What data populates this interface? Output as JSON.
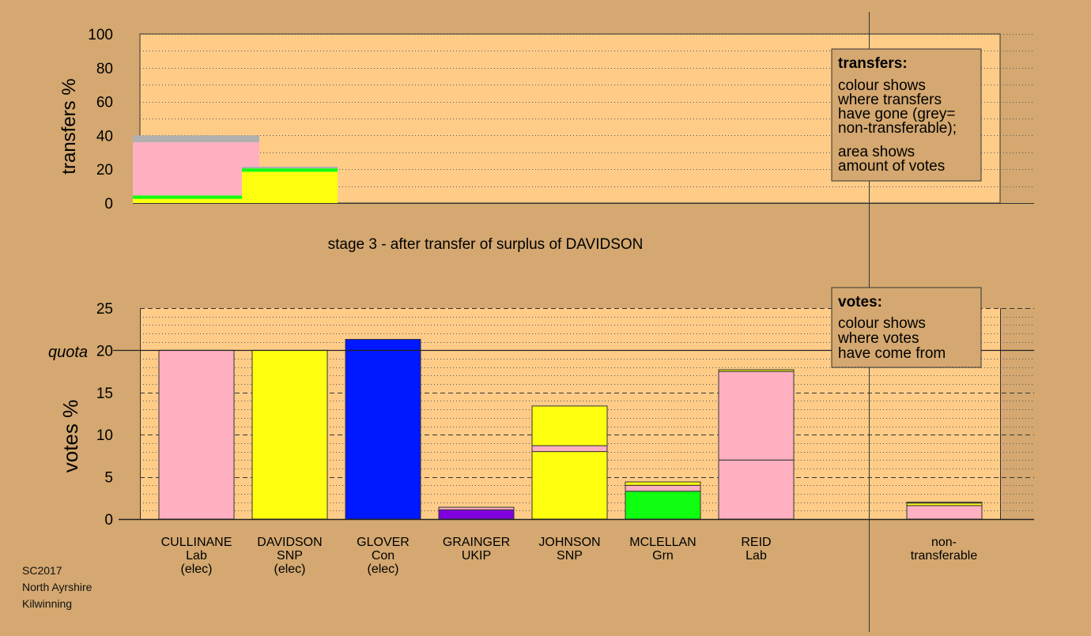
{
  "colors": {
    "background": "#d4a870",
    "plot_area": "#ffcc88",
    "Lab": "#ffb0c0",
    "SNP": "#ffff10",
    "Con": "#0018ff",
    "UKIP": "#8000e0",
    "Grn": "#10ff10",
    "nontransferable": "#b0b0b0"
  },
  "transfers_chart": {
    "type": "stacked-bar",
    "ylabel": "transfers %",
    "ylim": [
      0,
      100
    ],
    "yticks": [
      0,
      20,
      40,
      60,
      80,
      100
    ],
    "bars": [
      {
        "name": "from-cullinane",
        "segments": [
          {
            "party": "SNP",
            "from": 0,
            "to": 2.5
          },
          {
            "party": "Grn",
            "from": 2.5,
            "to": 4.5
          },
          {
            "party": "Lab",
            "from": 4.5,
            "to": 36
          },
          {
            "party": "nontransferable",
            "from": 36,
            "to": 40
          }
        ]
      },
      {
        "name": "from-davidson",
        "segments": [
          {
            "party": "SNP",
            "from": 0,
            "to": 18.5
          },
          {
            "party": "Grn",
            "from": 18.5,
            "to": 20.5
          },
          {
            "party": "nontransferable",
            "from": 20.5,
            "to": 21.5
          }
        ]
      }
    ]
  },
  "stage_title": "stage 3 - after transfer of surplus of DAVIDSON",
  "transfers_legend": {
    "title": "transfers:",
    "lines1": [
      "colour shows",
      "where transfers",
      "have gone (grey=",
      "non-transferable);"
    ],
    "lines2": [
      "area shows",
      "amount of votes"
    ]
  },
  "votes_chart": {
    "type": "stacked-bar",
    "ylabel": "votes %",
    "ylim": [
      0,
      25
    ],
    "yticks": [
      0,
      5,
      10,
      15,
      20,
      25
    ],
    "quota": 20,
    "quota_label": "quota",
    "candidates": [
      {
        "name": "CULLINANE",
        "party": "Lab",
        "status": "(elec)",
        "segments": [
          {
            "party": "Lab",
            "value": 20
          }
        ]
      },
      {
        "name": "DAVIDSON",
        "party": "SNP",
        "status": "(elec)",
        "segments": [
          {
            "party": "SNP",
            "value": 20
          }
        ]
      },
      {
        "name": "GLOVER",
        "party": "Con",
        "status": "(elec)",
        "segments": [
          {
            "party": "Con",
            "value": 21.3
          }
        ]
      },
      {
        "name": "GRAINGER",
        "party": "UKIP",
        "status": "",
        "segments": [
          {
            "party": "UKIP",
            "value": 1.1
          },
          {
            "party": "Lab",
            "value": 0.3
          }
        ]
      },
      {
        "name": "JOHNSON",
        "party": "SNP",
        "status": "",
        "segments": [
          {
            "party": "SNP",
            "value": 8.0
          },
          {
            "party": "Lab",
            "value": 0.7
          },
          {
            "party": "SNP",
            "value": 4.7
          }
        ]
      },
      {
        "name": "MCLELLAN",
        "party": "Grn",
        "status": "",
        "segments": [
          {
            "party": "Grn",
            "value": 3.3
          },
          {
            "party": "Lab",
            "value": 0.7
          },
          {
            "party": "SNP",
            "value": 0.4
          }
        ]
      },
      {
        "name": "REID",
        "party": "Lab",
        "status": "",
        "segments": [
          {
            "party": "Lab",
            "value": 7.0
          },
          {
            "party": "Lab",
            "value": 10.5
          },
          {
            "party": "SNP",
            "value": 0.2
          }
        ]
      }
    ],
    "nontransferable": {
      "label_line1": "non-",
      "label_line2": "transferable",
      "segments": [
        {
          "party": "Lab",
          "value": 1.6
        },
        {
          "party": "SNP",
          "value": 0.3
        },
        {
          "party": "Lab",
          "value": 0.1
        }
      ]
    }
  },
  "votes_legend": {
    "title": "votes:",
    "lines": [
      "colour shows",
      "where votes",
      "have come from"
    ]
  },
  "notes": [
    "SC2017",
    "North Ayrshire",
    "Kilwinning"
  ]
}
